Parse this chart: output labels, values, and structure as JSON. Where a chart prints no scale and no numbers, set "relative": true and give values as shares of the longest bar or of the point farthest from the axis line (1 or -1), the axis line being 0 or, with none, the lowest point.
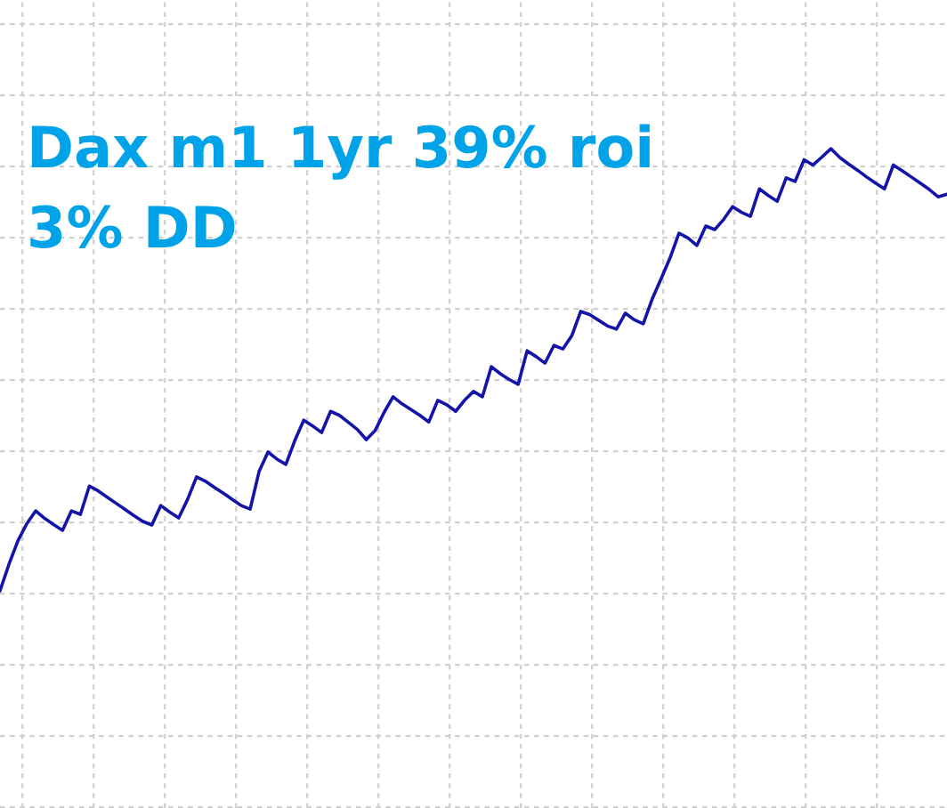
{
  "chart_data": {
    "type": "line",
    "title": "Dax m1 1yr 39% roi",
    "subtitle": "3% DD",
    "relative": true,
    "grid": true,
    "categories": [
      null,
      null,
      null,
      null,
      null,
      null,
      null,
      null,
      null,
      null,
      null,
      null,
      null,
      null,
      null,
      null,
      null,
      null,
      null,
      null,
      null,
      null,
      null,
      null,
      null,
      null,
      null,
      null,
      null,
      null,
      null,
      null,
      null,
      null,
      null,
      null,
      null,
      null,
      null,
      null,
      null,
      null,
      null,
      null,
      null,
      null,
      null,
      null,
      null,
      null,
      null,
      null,
      null,
      null,
      null,
      null,
      null,
      null,
      null,
      null,
      null,
      null,
      null,
      null,
      null,
      null,
      null,
      null,
      null,
      null,
      null,
      null,
      null,
      null,
      null,
      null,
      null,
      null,
      null,
      null,
      null,
      null,
      null,
      null,
      null,
      null,
      null,
      null,
      null,
      null,
      null,
      null,
      null,
      null,
      null,
      null,
      null,
      null,
      null,
      null,
      null,
      null,
      null,
      null,
      null,
      null,
      null
    ],
    "series": [
      {
        "color": "#1414a8",
        "values": [
          0,
          0.06,
          0.113,
          0.152,
          0.181,
          0.164,
          0.15,
          0.137,
          0.181,
          0.173,
          0.237,
          0.226,
          0.212,
          0.198,
          0.184,
          0.17,
          0.157,
          0.149,
          0.193,
          0.178,
          0.165,
          0.207,
          0.258,
          0.248,
          0.234,
          0.221,
          0.207,
          0.193,
          0.185,
          0.27,
          0.314,
          0.298,
          0.286,
          0.34,
          0.386,
          0.373,
          0.358,
          0.406,
          0.397,
          0.381,
          0.365,
          0.342,
          0.363,
          0.404,
          0.439,
          0.423,
          0.41,
          0.397,
          0.382,
          0.431,
          0.421,
          0.406,
          0.431,
          0.451,
          0.439,
          0.507,
          0.491,
          0.478,
          0.467,
          0.543,
          0.53,
          0.515,
          0.555,
          0.547,
          0.577,
          0.632,
          0.625,
          0.612,
          0.599,
          0.592,
          0.628,
          0.613,
          0.604,
          0.66,
          0.706,
          0.753,
          0.809,
          0.798,
          0.781,
          0.825,
          0.817,
          0.84,
          0.869,
          0.856,
          0.847,
          0.909,
          0.894,
          0.881,
          0.934,
          0.926,
          0.975,
          0.963,
          0.981,
          1,
          0.98,
          0.965,
          0.951,
          0.936,
          0.922,
          0.909,
          0.963,
          0.95,
          0.936,
          0.922,
          0.908,
          0.891,
          0.897
        ]
      }
    ]
  }
}
